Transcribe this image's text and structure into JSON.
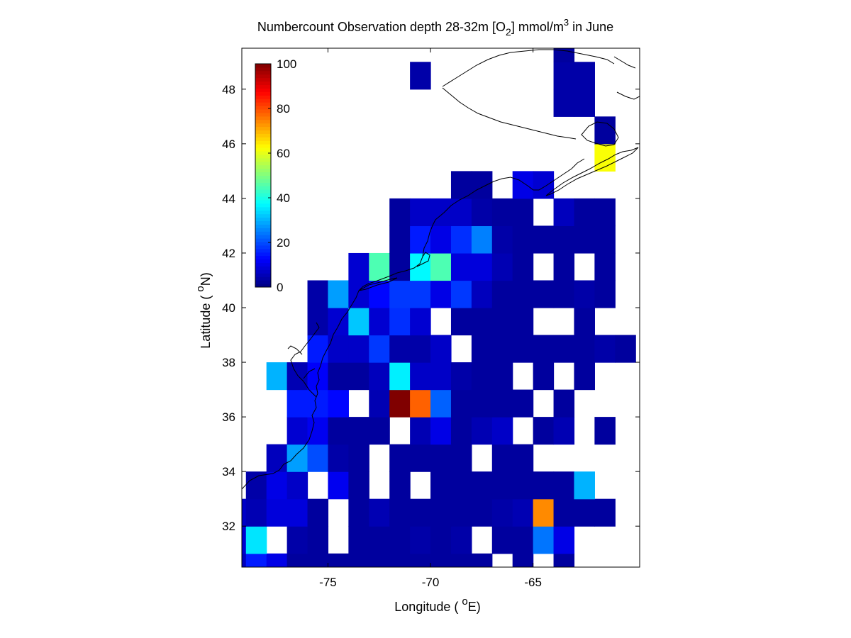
{
  "chart_data": {
    "type": "heatmap",
    "title": {
      "part1": "Numbercount Observation depth 28-32m [O",
      "sub": "2",
      "part2": "] mmol/m",
      "sup": "3",
      "part3": " in June"
    },
    "xlabel": {
      "pre": "Longitude ( ",
      "sup": "o",
      "post": "E)"
    },
    "ylabel": {
      "pre": "Latitude ( ",
      "sup": "o",
      "post": "N)"
    },
    "xlim": [
      -79.2,
      -59.8
    ],
    "ylim": [
      30.5,
      49.5
    ],
    "xticks": [
      -75,
      -70,
      -65
    ],
    "xtick_labels": [
      "-75",
      "-70",
      "-65"
    ],
    "yticks": [
      32,
      34,
      36,
      38,
      40,
      42,
      44,
      46,
      48
    ],
    "ytick_labels": [
      "32",
      "34",
      "36",
      "38",
      "40",
      "42",
      "44",
      "46",
      "48"
    ],
    "colorbar": {
      "colormap": "jet",
      "range": [
        0,
        100
      ],
      "ticks": [
        0,
        20,
        40,
        60,
        80,
        100
      ],
      "tick_labels": [
        "0",
        "20",
        "40",
        "60",
        "80",
        "100"
      ],
      "placement": "inside top-left"
    },
    "cell_size_deg": 1,
    "cells": [
      [
        -79.5,
        30.5,
        6
      ],
      [
        -78.5,
        30.5,
        15
      ],
      [
        -77.5,
        30.5,
        10
      ],
      [
        -76.5,
        30.5,
        3
      ],
      [
        -75.5,
        30.5,
        3
      ],
      [
        -74.5,
        30.5,
        3
      ],
      [
        -73.5,
        30.5,
        3
      ],
      [
        -72.5,
        30.5,
        3
      ],
      [
        -71.5,
        30.5,
        3
      ],
      [
        -70.5,
        30.5,
        3
      ],
      [
        -69.5,
        30.5,
        3
      ],
      [
        -68.5,
        30.5,
        3
      ],
      [
        -67.5,
        30.5,
        3
      ],
      [
        -65.5,
        30.5,
        3
      ],
      [
        -63.5,
        30.5,
        3
      ],
      [
        -79.5,
        31.5,
        8
      ],
      [
        -78.5,
        31.5,
        35
      ],
      [
        -76.5,
        31.5,
        4
      ],
      [
        -75.5,
        31.5,
        3
      ],
      [
        -73.5,
        31.5,
        3
      ],
      [
        -72.5,
        31.5,
        3
      ],
      [
        -71.5,
        31.5,
        3
      ],
      [
        -70.5,
        31.5,
        4
      ],
      [
        -69.5,
        31.5,
        3
      ],
      [
        -68.5,
        31.5,
        4
      ],
      [
        -66.5,
        31.5,
        3
      ],
      [
        -65.5,
        31.5,
        3
      ],
      [
        -64.5,
        31.5,
        24
      ],
      [
        -63.5,
        31.5,
        10
      ],
      [
        -79.5,
        32.5,
        7
      ],
      [
        -78.5,
        32.5,
        5
      ],
      [
        -77.5,
        32.5,
        9
      ],
      [
        -76.5,
        32.5,
        9
      ],
      [
        -75.5,
        32.5,
        3
      ],
      [
        -73.5,
        32.5,
        3
      ],
      [
        -72.5,
        32.5,
        5
      ],
      [
        -71.5,
        32.5,
        3
      ],
      [
        -70.5,
        32.5,
        3
      ],
      [
        -69.5,
        32.5,
        3
      ],
      [
        -68.5,
        32.5,
        3
      ],
      [
        -67.5,
        32.5,
        3
      ],
      [
        -66.5,
        32.5,
        4
      ],
      [
        -65.5,
        32.5,
        5
      ],
      [
        -64.5,
        32.5,
        74
      ],
      [
        -63.5,
        32.5,
        3
      ],
      [
        -62.5,
        32.5,
        3
      ],
      [
        -61.5,
        32.5,
        3
      ],
      [
        -78.5,
        33.5,
        4
      ],
      [
        -77.5,
        33.5,
        10
      ],
      [
        -76.5,
        33.5,
        7
      ],
      [
        -74.5,
        33.5,
        11
      ],
      [
        -73.5,
        33.5,
        3
      ],
      [
        -71.5,
        33.5,
        3
      ],
      [
        -69.5,
        33.5,
        3
      ],
      [
        -68.5,
        33.5,
        3
      ],
      [
        -67.5,
        33.5,
        3
      ],
      [
        -66.5,
        33.5,
        3
      ],
      [
        -65.5,
        33.5,
        3
      ],
      [
        -64.5,
        33.5,
        3
      ],
      [
        -63.5,
        33.5,
        3
      ],
      [
        -62.5,
        33.5,
        30
      ],
      [
        -77.5,
        34.5,
        6
      ],
      [
        -76.5,
        34.5,
        28
      ],
      [
        -75.5,
        34.5,
        20
      ],
      [
        -74.5,
        34.5,
        4
      ],
      [
        -73.5,
        34.5,
        3
      ],
      [
        -71.5,
        34.5,
        3
      ],
      [
        -70.5,
        34.5,
        3
      ],
      [
        -69.5,
        34.5,
        3
      ],
      [
        -68.5,
        34.5,
        3
      ],
      [
        -66.5,
        34.5,
        3
      ],
      [
        -65.5,
        34.5,
        3
      ],
      [
        -76.5,
        35.5,
        8
      ],
      [
        -75.5,
        35.5,
        11
      ],
      [
        -74.5,
        35.5,
        3
      ],
      [
        -73.5,
        35.5,
        3
      ],
      [
        -72.5,
        35.5,
        3
      ],
      [
        -70.5,
        35.5,
        5
      ],
      [
        -69.5,
        35.5,
        10
      ],
      [
        -68.5,
        35.5,
        3
      ],
      [
        -67.5,
        35.5,
        5
      ],
      [
        -66.5,
        35.5,
        7
      ],
      [
        -64.5,
        35.5,
        3
      ],
      [
        -63.5,
        35.5,
        5
      ],
      [
        -61.5,
        35.5,
        3
      ],
      [
        -76.5,
        36.5,
        15
      ],
      [
        -75.5,
        36.5,
        15
      ],
      [
        -74.5,
        36.5,
        13
      ],
      [
        -72.5,
        36.5,
        5
      ],
      [
        -71.5,
        36.5,
        100
      ],
      [
        -70.5,
        36.5,
        78
      ],
      [
        -69.5,
        36.5,
        22
      ],
      [
        -68.5,
        36.5,
        3
      ],
      [
        -67.5,
        36.5,
        3
      ],
      [
        -66.5,
        36.5,
        3
      ],
      [
        -65.5,
        36.5,
        3
      ],
      [
        -63.5,
        36.5,
        3
      ],
      [
        -77.5,
        37.5,
        30
      ],
      [
        -76.5,
        37.5,
        5
      ],
      [
        -75.5,
        37.5,
        12
      ],
      [
        -74.5,
        37.5,
        3
      ],
      [
        -73.5,
        37.5,
        3
      ],
      [
        -72.5,
        37.5,
        6
      ],
      [
        -71.5,
        37.5,
        36
      ],
      [
        -70.5,
        37.5,
        7
      ],
      [
        -69.5,
        37.5,
        7
      ],
      [
        -68.5,
        37.5,
        4
      ],
      [
        -67.5,
        37.5,
        3
      ],
      [
        -66.5,
        37.5,
        3
      ],
      [
        -64.5,
        37.5,
        3
      ],
      [
        -62.5,
        37.5,
        3
      ],
      [
        -75.5,
        38.5,
        15
      ],
      [
        -74.5,
        38.5,
        7
      ],
      [
        -73.5,
        38.5,
        7
      ],
      [
        -72.5,
        38.5,
        18
      ],
      [
        -71.5,
        38.5,
        4
      ],
      [
        -70.5,
        38.5,
        4
      ],
      [
        -69.5,
        38.5,
        7
      ],
      [
        -67.5,
        38.5,
        3
      ],
      [
        -66.5,
        38.5,
        3
      ],
      [
        -65.5,
        38.5,
        3
      ],
      [
        -64.5,
        38.5,
        3
      ],
      [
        -63.5,
        38.5,
        3
      ],
      [
        -62.5,
        38.5,
        3
      ],
      [
        -61.5,
        38.5,
        4
      ],
      [
        -60.5,
        38.5,
        3
      ],
      [
        -75.5,
        39.5,
        4
      ],
      [
        -74.5,
        39.5,
        8
      ],
      [
        -73.5,
        39.5,
        32
      ],
      [
        -72.5,
        39.5,
        8
      ],
      [
        -71.5,
        39.5,
        17
      ],
      [
        -70.5,
        39.5,
        8
      ],
      [
        -68.5,
        39.5,
        3
      ],
      [
        -67.5,
        39.5,
        3
      ],
      [
        -66.5,
        39.5,
        3
      ],
      [
        -65.5,
        39.5,
        3
      ],
      [
        -62.5,
        39.5,
        3
      ],
      [
        -75.5,
        40.5,
        4
      ],
      [
        -74.5,
        40.5,
        28
      ],
      [
        -73.5,
        40.5,
        8
      ],
      [
        -72.5,
        40.5,
        13
      ],
      [
        -71.5,
        40.5,
        18
      ],
      [
        -70.5,
        40.5,
        18
      ],
      [
        -69.5,
        40.5,
        10
      ],
      [
        -68.5,
        40.5,
        18
      ],
      [
        -67.5,
        40.5,
        6
      ],
      [
        -66.5,
        40.5,
        3
      ],
      [
        -65.5,
        40.5,
        3
      ],
      [
        -64.5,
        40.5,
        3
      ],
      [
        -63.5,
        40.5,
        3
      ],
      [
        -62.5,
        40.5,
        4
      ],
      [
        -61.5,
        40.5,
        3
      ],
      [
        -73.5,
        41.5,
        8
      ],
      [
        -72.5,
        41.5,
        45
      ],
      [
        -71.5,
        41.5,
        3
      ],
      [
        -70.5,
        41.5,
        37
      ],
      [
        -69.5,
        41.5,
        45
      ],
      [
        -68.5,
        41.5,
        9
      ],
      [
        -67.5,
        41.5,
        9
      ],
      [
        -66.5,
        41.5,
        5
      ],
      [
        -65.5,
        41.5,
        3
      ],
      [
        -63.5,
        41.5,
        3
      ],
      [
        -61.5,
        41.5,
        3
      ],
      [
        -71.5,
        42.5,
        3
      ],
      [
        -70.5,
        42.5,
        15
      ],
      [
        -69.5,
        42.5,
        10
      ],
      [
        -68.5,
        42.5,
        17
      ],
      [
        -67.5,
        42.5,
        25
      ],
      [
        -66.5,
        42.5,
        4
      ],
      [
        -65.5,
        42.5,
        3
      ],
      [
        -64.5,
        42.5,
        3
      ],
      [
        -63.5,
        42.5,
        3
      ],
      [
        -62.5,
        42.5,
        3
      ],
      [
        -61.5,
        42.5,
        3
      ],
      [
        -71.5,
        43.5,
        3
      ],
      [
        -70.5,
        43.5,
        7
      ],
      [
        -69.5,
        43.5,
        7
      ],
      [
        -68.5,
        43.5,
        7
      ],
      [
        -67.5,
        43.5,
        4
      ],
      [
        -66.5,
        43.5,
        3
      ],
      [
        -65.5,
        43.5,
        3
      ],
      [
        -63.5,
        43.5,
        6
      ],
      [
        -62.5,
        43.5,
        3
      ],
      [
        -61.5,
        43.5,
        3
      ],
      [
        -68.5,
        44.5,
        3
      ],
      [
        -67.5,
        44.5,
        3
      ],
      [
        -65.5,
        44.5,
        10
      ],
      [
        -64.5,
        44.5,
        8
      ],
      [
        -61.5,
        45.5,
        62
      ],
      [
        -61.5,
        46.5,
        3
      ],
      [
        -63.5,
        47.5,
        4
      ],
      [
        -62.5,
        47.5,
        4
      ],
      [
        -70.5,
        48.5,
        4
      ],
      [
        -63.5,
        48.5,
        4
      ],
      [
        -62.5,
        48.5,
        4
      ],
      [
        -63.5,
        49.5,
        3
      ]
    ]
  }
}
